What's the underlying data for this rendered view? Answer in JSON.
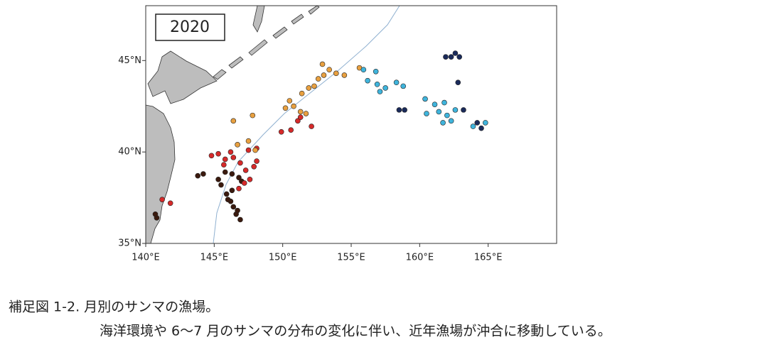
{
  "chart_data": {
    "type": "scatter",
    "label": "2020",
    "xlim": [
      140,
      170
    ],
    "ylim": [
      35,
      48
    ],
    "xticks": [
      {
        "value": 140,
        "label": "140°E"
      },
      {
        "value": 145,
        "label": "145°E"
      },
      {
        "value": 150,
        "label": "150°E"
      },
      {
        "value": 155,
        "label": "155°E"
      },
      {
        "value": 160,
        "label": "160°E"
      },
      {
        "value": 165,
        "label": "165°E"
      }
    ],
    "yticks": [
      {
        "value": 35,
        "label": "35°N"
      },
      {
        "value": 40,
        "label": "40°N"
      },
      {
        "value": 45,
        "label": "45°N"
      }
    ],
    "series": [
      {
        "color": "#3b1a0e",
        "x": [
          140.8,
          140.7,
          143.8,
          144.2,
          145.3,
          145.5,
          145.9,
          146.2,
          146.4,
          146.6,
          146.9,
          146.7,
          146.0,
          146.8,
          147.0,
          146.3,
          145.8,
          146.3
        ],
        "y": [
          36.4,
          36.6,
          38.7,
          38.8,
          38.5,
          38.2,
          37.7,
          37.3,
          37.0,
          36.6,
          36.3,
          36.8,
          37.4,
          38.6,
          38.4,
          38.8,
          38.9,
          37.9
        ]
      },
      {
        "color": "#d62a2a",
        "x": [
          141.2,
          141.8,
          144.8,
          145.3,
          145.8,
          146.4,
          146.9,
          147.3,
          147.6,
          147.9,
          148.1,
          147.5,
          146.2,
          145.7,
          148.1,
          149.9,
          150.6,
          151.1,
          151.3,
          152.1,
          146.8,
          147.2
        ],
        "y": [
          37.4,
          37.2,
          39.8,
          39.9,
          39.6,
          39.7,
          39.4,
          39.0,
          38.5,
          39.2,
          39.5,
          40.1,
          40.0,
          39.3,
          40.2,
          41.1,
          41.2,
          41.7,
          41.9,
          41.4,
          38.0,
          38.3
        ]
      },
      {
        "color": "#e8a040",
        "x": [
          146.7,
          147.5,
          148.0,
          146.4,
          147.8,
          150.2,
          150.8,
          151.3,
          151.7,
          150.5,
          151.4,
          151.9,
          152.3,
          152.6,
          153.0,
          153.4,
          153.9,
          152.9,
          155.6,
          154.5
        ],
        "y": [
          40.4,
          40.6,
          40.1,
          41.7,
          42.0,
          42.4,
          42.5,
          42.2,
          42.1,
          42.8,
          43.2,
          43.5,
          43.6,
          44.0,
          44.2,
          44.5,
          44.3,
          44.8,
          44.6,
          44.2
        ]
      },
      {
        "color": "#3fb4dc",
        "x": [
          155.9,
          156.2,
          156.8,
          156.9,
          157.1,
          157.5,
          158.3,
          158.8,
          161.1,
          161.4,
          161.8,
          162.0,
          162.3,
          161.7,
          162.6,
          160.4,
          160.5,
          164.8,
          163.9
        ],
        "y": [
          44.5,
          43.9,
          44.4,
          43.7,
          43.3,
          43.5,
          43.8,
          43.6,
          42.6,
          42.2,
          42.7,
          42.0,
          41.7,
          41.6,
          42.3,
          42.9,
          42.1,
          41.6,
          41.4
        ]
      },
      {
        "color": "#1a2a5a",
        "x": [
          158.5,
          158.9,
          161.9,
          162.3,
          162.6,
          162.9,
          162.8,
          163.2,
          164.2,
          164.5
        ],
        "y": [
          42.3,
          42.3,
          45.2,
          45.2,
          45.4,
          45.2,
          43.8,
          42.3,
          41.6,
          41.3
        ]
      }
    ]
  },
  "caption": {
    "title": "補足図 1-2.  月別のサンマの漁場。",
    "text": "海洋環境や 6～7 月のサンマの分布の変化に伴い、近年漁場が沖合に移動している。"
  }
}
